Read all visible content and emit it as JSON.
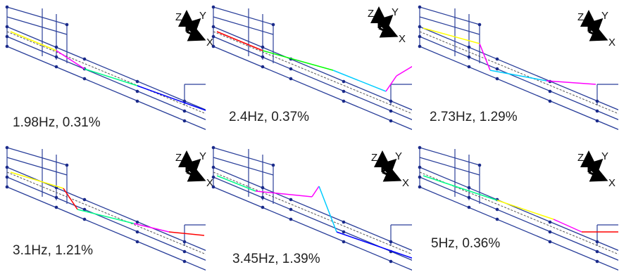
{
  "panels": [
    {
      "caption": "1.98Hz, 0.31%"
    },
    {
      "caption": "2.4Hz, 0.37%"
    },
    {
      "caption": "2.73Hz, 1.29%"
    },
    {
      "caption": "3.1Hz, 1.21%"
    },
    {
      "caption": "3.45Hz, 1.39%"
    },
    {
      "caption": "5Hz, 0.36%"
    }
  ],
  "triad": {
    "z": "Z",
    "y": "Y",
    "x": "X"
  }
}
